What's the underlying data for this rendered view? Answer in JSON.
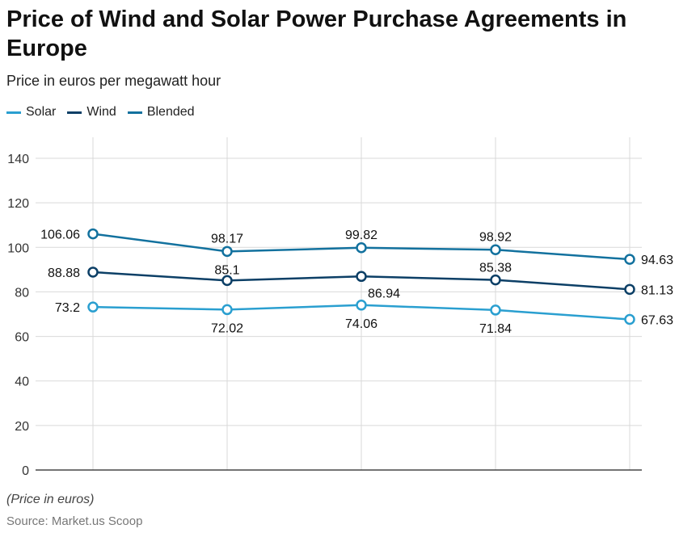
{
  "chart_data": {
    "type": "line",
    "title": "Price of Wind and Solar Power Purchase Agreements in Europe",
    "subtitle": "Price in euros per megawatt hour",
    "categories": [
      "",
      "",
      "",
      "",
      ""
    ],
    "series": [
      {
        "name": "Solar",
        "color": "#2a9fd0",
        "values": [
          73.2,
          72.02,
          74.06,
          71.84,
          67.63
        ]
      },
      {
        "name": "Wind",
        "color": "#0c3f66",
        "values": [
          88.88,
          85.1,
          86.94,
          85.38,
          81.13
        ]
      },
      {
        "name": "Blended",
        "color": "#12719e",
        "values": [
          106.06,
          98.17,
          99.82,
          98.92,
          94.63
        ]
      }
    ],
    "ylim": [
      0,
      140
    ],
    "yticks": [
      0,
      20,
      40,
      60,
      80,
      100,
      120,
      140
    ],
    "xlabel": "",
    "ylabel": "",
    "grid": true,
    "legend": "top-left"
  },
  "footer": {
    "note": "(Price in euros)",
    "source": "Source: Market.us Scoop"
  }
}
